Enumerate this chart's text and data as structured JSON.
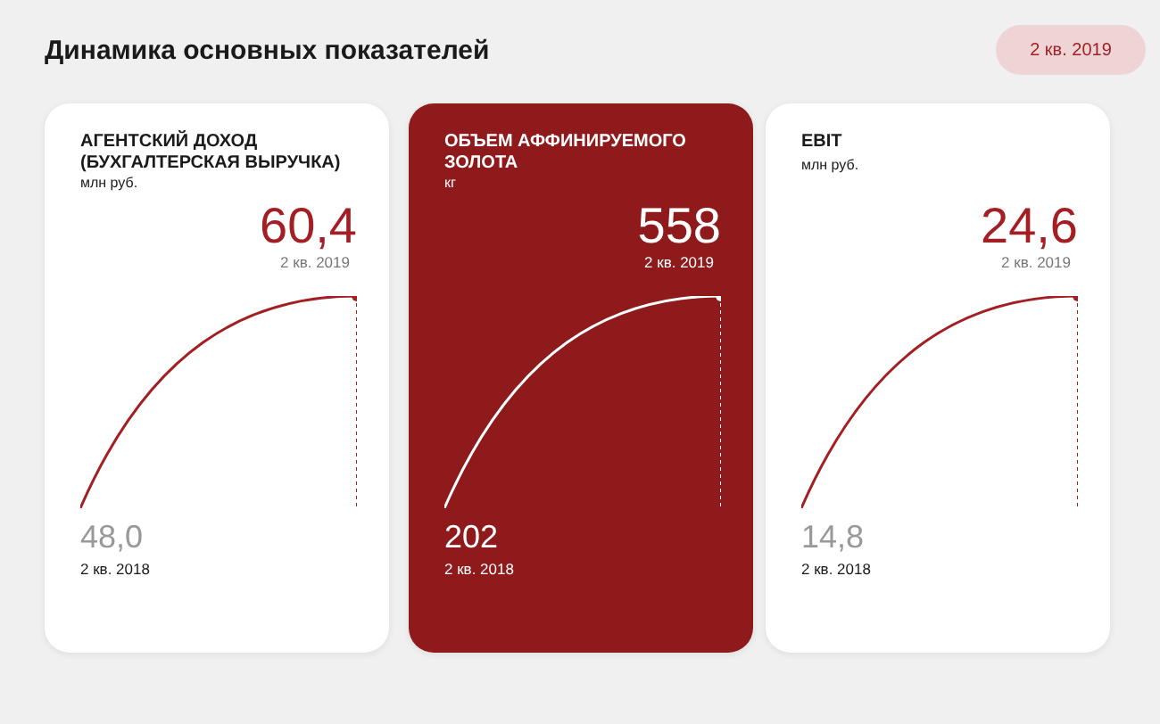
{
  "chart_data": [
    {
      "type": "line",
      "title": "АГЕНТСКИЙ ДОХОД (БУХГАЛТЕРСКАЯ ВЫРУЧКА)",
      "ylabel": "млн руб.",
      "annotations": [
        "Динамика основных показателей",
        "2 кв. 2019",
        "2 кв. 2018",
        "2 кв. 2019"
      ],
      "categories": [
        null,
        null
      ],
      "series": [
        {
          "color": "#a31f24",
          "values": [
            48.0,
            60.4
          ],
          "value_labels": [
            "48,0",
            "60,4"
          ]
        }
      ],
      "marker": "circle"
    },
    {
      "type": "line",
      "title": "ОБЪЕМ АФФИНИРУЕМОГО ЗОЛОТА",
      "ylabel": "кг",
      "annotations": [
        "2 кв. 2018",
        "2 кв. 2019"
      ],
      "categories": [
        null,
        null
      ],
      "series": [
        {
          "color": "#ffffff",
          "values": [
            202,
            558
          ],
          "value_labels": [
            "202",
            "558"
          ]
        }
      ],
      "marker": "circle"
    },
    {
      "type": "line",
      "title": "EBIT",
      "ylabel": "млн руб.",
      "annotations": [
        "2 кв. 2018",
        "2 кв. 2019"
      ],
      "categories": [
        null,
        null
      ],
      "series": [
        {
          "color": "#a31f24",
          "values": [
            14.8,
            24.6
          ],
          "value_labels": [
            "14,8",
            "24,6"
          ]
        }
      ],
      "marker": "circle"
    }
  ]
}
